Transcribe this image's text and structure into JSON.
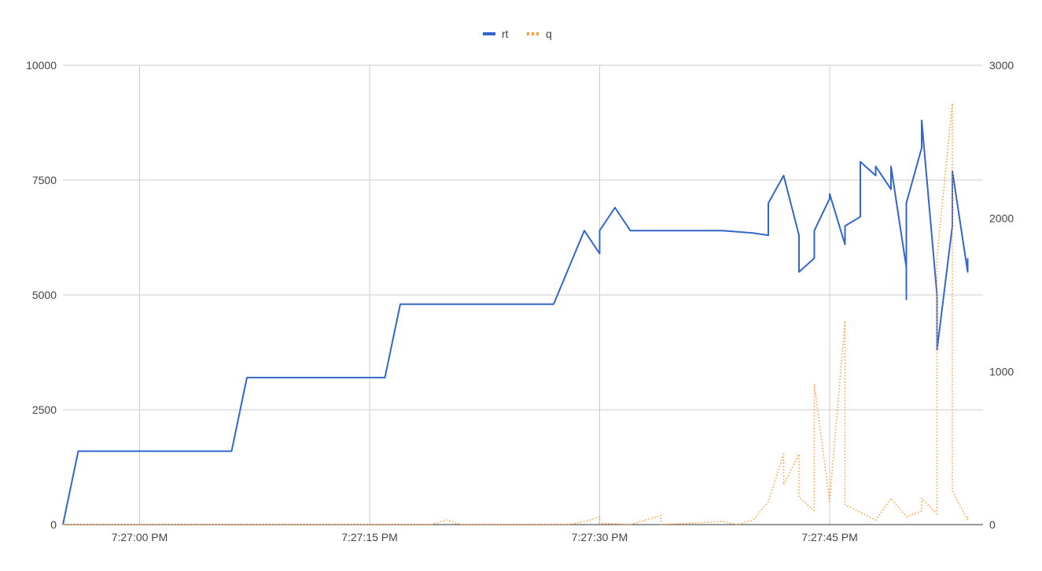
{
  "chart_data": {
    "type": "line",
    "title": "",
    "xlabel": "",
    "ylabel": "",
    "y2label": "",
    "legend_position": "top",
    "grid": true,
    "x_axis": {
      "type": "time",
      "range": [
        "7:26:55 PM",
        "7:27:55 PM"
      ],
      "ticks": [
        "7:27:00 PM",
        "7:27:15 PM",
        "7:27:30 PM",
        "7:27:45 PM"
      ]
    },
    "y_axis_left": {
      "range": [
        0,
        10000
      ],
      "ticks": [
        "0",
        "2500",
        "5000",
        "7500",
        "10000"
      ]
    },
    "y_axis_right": {
      "range": [
        0,
        3000
      ],
      "ticks": [
        "0",
        "1000",
        "2000",
        "3000"
      ]
    },
    "series": [
      {
        "name": "rt",
        "color": "#3366cc",
        "style": "solid",
        "axis": "left",
        "points": [
          [
            "7:26:55 PM",
            0
          ],
          [
            "7:26:56 PM",
            1600
          ],
          [
            "7:27:00 PM",
            1600
          ],
          [
            "7:27:05 PM",
            1600
          ],
          [
            "7:27:06 PM",
            1600
          ],
          [
            "7:27:07 PM",
            3200
          ],
          [
            "7:27:10 PM",
            3200
          ],
          [
            "7:27:15 PM",
            3200
          ],
          [
            "7:27:16 PM",
            3200
          ],
          [
            "7:27:17 PM",
            4800
          ],
          [
            "7:27:22 PM",
            4800
          ],
          [
            "7:27:27 PM",
            4800
          ],
          [
            "7:27:28 PM",
            5600
          ],
          [
            "7:27:29 PM",
            6400
          ],
          [
            "7:27:30 PM",
            5900
          ],
          [
            "7:27:30 PM",
            6400
          ],
          [
            "7:27:31 PM",
            6900
          ],
          [
            "7:27:32 PM",
            6400
          ],
          [
            "7:27:35 PM",
            6400
          ],
          [
            "7:27:38 PM",
            6400
          ],
          [
            "7:27:40 PM",
            6350
          ],
          [
            "7:27:41 PM",
            6300
          ],
          [
            "7:27:41 PM",
            7000
          ],
          [
            "7:27:42 PM",
            7600
          ],
          [
            "7:27:43 PM",
            6300
          ],
          [
            "7:27:43 PM",
            5500
          ],
          [
            "7:27:44 PM",
            5800
          ],
          [
            "7:27:44 PM",
            6400
          ],
          [
            "7:27:45 PM",
            7100
          ],
          [
            "7:27:45 PM",
            7200
          ],
          [
            "7:27:46 PM",
            6100
          ],
          [
            "7:27:46 PM",
            6500
          ],
          [
            "7:27:47 PM",
            6700
          ],
          [
            "7:27:47 PM",
            7500
          ],
          [
            "7:27:47 PM",
            7900
          ],
          [
            "7:27:48 PM",
            7600
          ],
          [
            "7:27:48 PM",
            7800
          ],
          [
            "7:27:49 PM",
            7300
          ],
          [
            "7:27:49 PM",
            7800
          ],
          [
            "7:27:50 PM",
            5600
          ],
          [
            "7:27:50 PM",
            4900
          ],
          [
            "7:27:50 PM",
            7000
          ],
          [
            "7:27:51 PM",
            8200
          ],
          [
            "7:27:51 PM",
            8800
          ],
          [
            "7:27:52 PM",
            5000
          ],
          [
            "7:27:52 PM",
            3800
          ],
          [
            "7:27:53 PM",
            6500
          ],
          [
            "7:27:53 PM",
            7200
          ],
          [
            "7:27:53 PM",
            7700
          ],
          [
            "7:27:54 PM",
            5500
          ],
          [
            "7:27:54 PM",
            5800
          ]
        ]
      },
      {
        "name": "q",
        "color": "#ff9933",
        "style": "dotted",
        "axis": "right",
        "points": [
          [
            "7:26:55 PM",
            0
          ],
          [
            "7:27:19 PM",
            0
          ],
          [
            "7:27:20 PM",
            30
          ],
          [
            "7:27:21 PM",
            0
          ],
          [
            "7:27:28 PM",
            0
          ],
          [
            "7:27:29 PM",
            20
          ],
          [
            "7:27:30 PM",
            50
          ],
          [
            "7:27:30 PM",
            10
          ],
          [
            "7:27:32 PM",
            0
          ],
          [
            "7:27:34 PM",
            60
          ],
          [
            "7:27:34 PM",
            0
          ],
          [
            "7:27:38 PM",
            20
          ],
          [
            "7:27:39 PM",
            0
          ],
          [
            "7:27:40 PM",
            30
          ],
          [
            "7:27:41 PM",
            150
          ],
          [
            "7:27:42 PM",
            460
          ],
          [
            "7:27:42 PM",
            260
          ],
          [
            "7:27:43 PM",
            460
          ],
          [
            "7:27:43 PM",
            180
          ],
          [
            "7:27:44 PM",
            90
          ],
          [
            "7:27:44 PM",
            190
          ],
          [
            "7:27:44 PM",
            920
          ],
          [
            "7:27:45 PM",
            150
          ],
          [
            "7:27:45 PM",
            160
          ],
          [
            "7:27:46 PM",
            1330
          ],
          [
            "7:27:46 PM",
            130
          ],
          [
            "7:27:47 PM",
            80
          ],
          [
            "7:27:48 PM",
            30
          ],
          [
            "7:27:49 PM",
            170
          ],
          [
            "7:27:49 PM",
            170
          ],
          [
            "7:27:50 PM",
            50
          ],
          [
            "7:27:51 PM",
            90
          ],
          [
            "7:27:51 PM",
            170
          ],
          [
            "7:27:52 PM",
            70
          ],
          [
            "7:27:52 PM",
            1750
          ],
          [
            "7:27:53 PM",
            2750
          ],
          [
            "7:27:53 PM",
            220
          ],
          [
            "7:27:54 PM",
            30
          ],
          [
            "7:27:54 PM",
            60
          ]
        ]
      }
    ]
  }
}
